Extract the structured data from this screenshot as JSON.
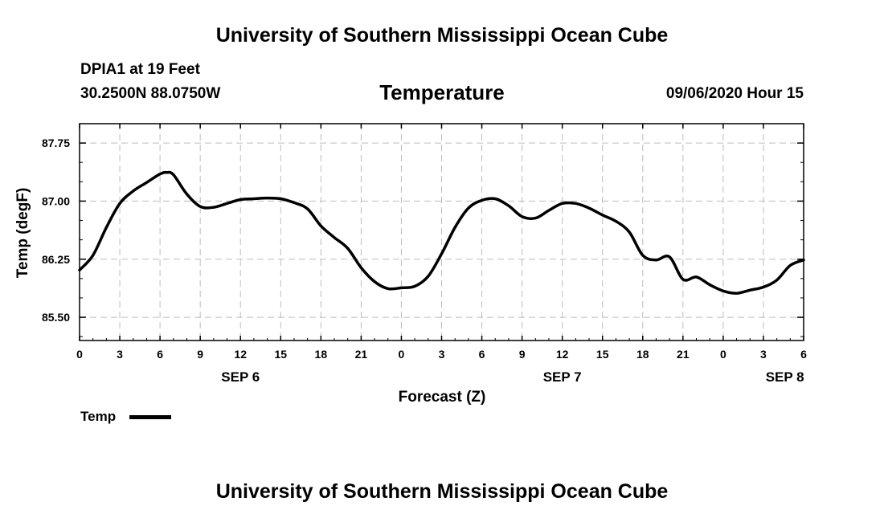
{
  "header": {
    "title": "University of Southern Mississippi Ocean Cube",
    "station": "DPIA1 at 19 Feet",
    "coords": "30.2500N 88.0750W",
    "variable": "Temperature",
    "timestamp": "09/06/2020 Hour 15"
  },
  "footer": {
    "title": "University of Southern Mississippi Ocean Cube"
  },
  "legend": {
    "label": "Temp"
  },
  "colors": {
    "line": "#000000",
    "grid": "#bdbdbd",
    "frame": "#000000"
  },
  "chart_data": {
    "type": "line",
    "title": "Temperature",
    "xlabel": "Forecast (Z)",
    "ylabel": "Temp (degF)",
    "xlim": [
      0,
      54
    ],
    "ylim": [
      85.2,
      88.0
    ],
    "y_ticks": [
      85.5,
      86.25,
      87.0,
      87.75
    ],
    "y_tick_labels": [
      "85.50",
      "86.25",
      "87.00",
      "87.75"
    ],
    "x_ticks": [
      0,
      3,
      6,
      9,
      12,
      15,
      18,
      21,
      24,
      27,
      30,
      33,
      36,
      39,
      42,
      45,
      48,
      51,
      54
    ],
    "x_tick_labels": [
      "0",
      "3",
      "6",
      "9",
      "12",
      "15",
      "18",
      "21",
      "0",
      "3",
      "6",
      "9",
      "12",
      "15",
      "18",
      "21",
      "0",
      "3",
      "6"
    ],
    "date_labels": [
      {
        "x": 12,
        "label": "SEP 6"
      },
      {
        "x": 36,
        "label": "SEP 7"
      },
      {
        "x": 52.6,
        "label": "SEP 8"
      }
    ],
    "grid": true,
    "legend_position": "bottom-left",
    "series": [
      {
        "name": "Temp",
        "x": [
          0,
          1,
          2,
          3,
          4,
          5,
          6,
          6.5,
          7,
          8,
          9,
          10,
          11,
          12,
          13,
          14,
          15,
          16,
          17,
          18,
          19,
          20,
          21,
          22,
          23,
          24,
          25,
          26,
          27,
          28,
          29,
          30,
          31,
          32,
          33,
          34,
          35,
          36,
          37,
          38,
          39,
          40,
          41,
          42,
          43,
          44,
          45,
          46,
          47,
          48,
          49,
          50,
          51,
          52,
          53,
          54
        ],
        "values": [
          86.11,
          86.3,
          86.66,
          86.97,
          87.13,
          87.24,
          87.35,
          87.37,
          87.34,
          87.09,
          86.93,
          86.92,
          86.97,
          87.02,
          87.03,
          87.04,
          87.03,
          86.98,
          86.9,
          86.68,
          86.53,
          86.39,
          86.14,
          85.96,
          85.87,
          85.88,
          85.9,
          86.03,
          86.32,
          86.66,
          86.91,
          87.01,
          87.03,
          86.94,
          86.8,
          86.78,
          86.88,
          86.97,
          86.97,
          86.91,
          86.82,
          86.74,
          86.6,
          86.3,
          86.24,
          86.28,
          85.99,
          86.02,
          85.92,
          85.84,
          85.81,
          85.85,
          85.89,
          85.98,
          86.17,
          86.24
        ]
      }
    ]
  }
}
